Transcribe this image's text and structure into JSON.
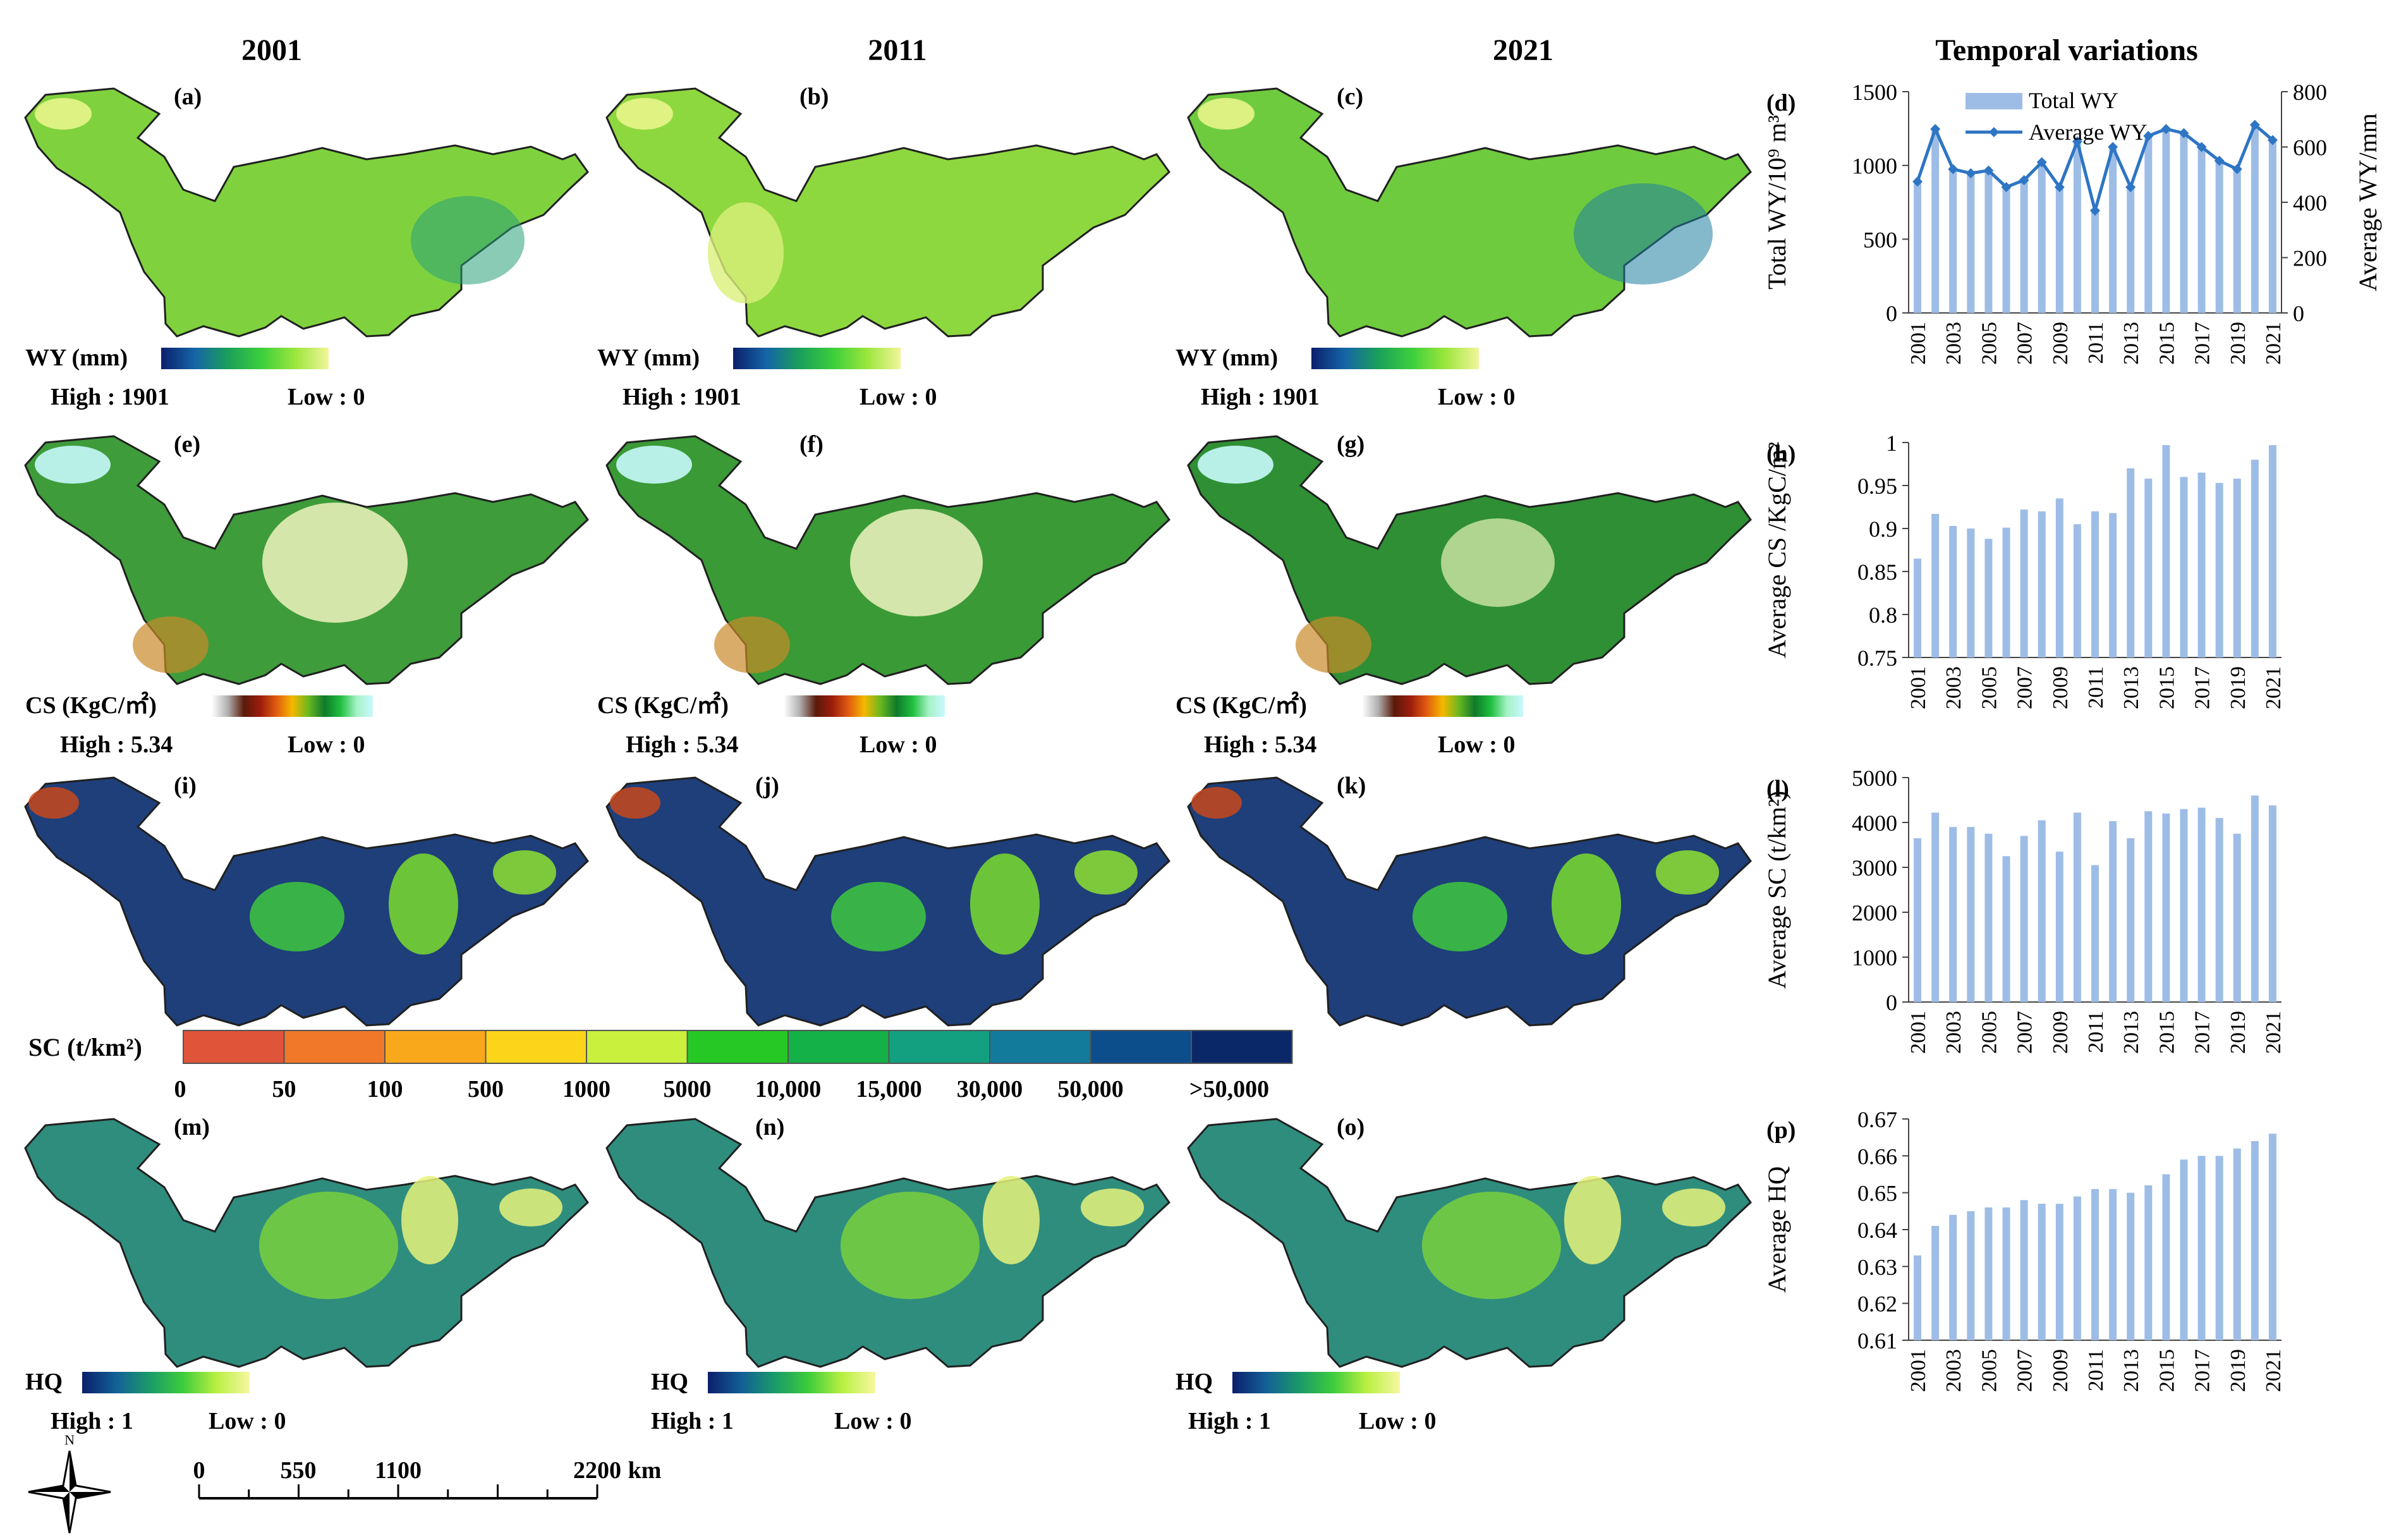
{
  "headers": {
    "years": [
      "2001",
      "2011",
      "2021"
    ],
    "temporal": "Temporal variations"
  },
  "panels": {
    "map_labels": [
      [
        "(a)",
        "(b)",
        "(c)"
      ],
      [
        "(e)",
        "(f)",
        "(g)"
      ],
      [
        "(i)",
        "(j)",
        "(k)"
      ],
      [
        "(m)",
        "(n)",
        "(o)"
      ]
    ],
    "chart_labels": [
      "(d)",
      "(h)",
      "(l)",
      "(p)"
    ]
  },
  "legends": {
    "wy": {
      "title": "WY (mm)",
      "high": "High : 1901",
      "low": "Low : 0",
      "colors": [
        "#0b1f6b",
        "#1565a8",
        "#1aa05a",
        "#3ccf3c",
        "#9be63c",
        "#f2f59a"
      ]
    },
    "cs": {
      "title": "CS (KgC/㎡)",
      "high": "High : 5.34",
      "low": "Low : 0",
      "colors": [
        "#ffffff",
        "#b0b0b0",
        "#5a1a0a",
        "#9b1c0c",
        "#e05a10",
        "#f5b800",
        "#6ab820",
        "#0f7a2a",
        "#1fbf3f",
        "#a6f2c6",
        "#c8f8ff"
      ]
    },
    "sc": {
      "title": "SC (t/km²)",
      "ticks": [
        "0",
        "50",
        "100",
        "500",
        "1000",
        "5000",
        "10,000",
        "15,000",
        "30,000",
        "50,000",
        ">50,000"
      ],
      "colors": [
        "#e0543a",
        "#f07828",
        "#f9a81c",
        "#fcd41a",
        "#c8f03c",
        "#26c826",
        "#14b048",
        "#12a080",
        "#127a9a",
        "#0c4e8c",
        "#0a2868"
      ]
    },
    "hq": {
      "title": "HQ",
      "high": "High : 1",
      "low": "Low : 0",
      "colors": [
        "#0b1f6b",
        "#135f96",
        "#1a9a6a",
        "#3ccc3c",
        "#b8f040",
        "#f7f7a0"
      ]
    }
  },
  "scalebar": {
    "ticks": [
      "0",
      "550",
      "1100",
      "2200"
    ],
    "unit": "km"
  },
  "compass": {
    "north": "N"
  },
  "map_fills": {
    "wy": [
      "#7fd23d",
      "#8ed83f",
      "#6fcb3e"
    ],
    "cs": "#3e9c3a",
    "sc": "#1e3f7a",
    "hq": "#2f8d7e"
  },
  "chart_data": [
    {
      "type": "bar+line",
      "label": "(d)",
      "categories": [
        "2001",
        "2002",
        "2003",
        "2004",
        "2005",
        "2006",
        "2007",
        "2008",
        "2009",
        "2010",
        "2011",
        "2012",
        "2013",
        "2014",
        "2015",
        "2016",
        "2017",
        "2018",
        "2019",
        "2020",
        "2021"
      ],
      "tick_labels": [
        "2001",
        "2003",
        "2005",
        "2007",
        "2009",
        "2011",
        "2013",
        "2015",
        "2017",
        "2019",
        "2021"
      ],
      "ylabel": "Total WY/10⁹ m³",
      "y2label": "Average WY/mm",
      "ylim": [
        0,
        1500
      ],
      "yticks": [
        "0",
        "500",
        "1000",
        "1500"
      ],
      "y2lim": [
        0,
        800
      ],
      "y2ticks": [
        "0",
        "200",
        "400",
        "600",
        "800"
      ],
      "legend": [
        "Total WY",
        "Average WY"
      ],
      "series": [
        {
          "name": "Total WY",
          "kind": "bar",
          "axis": "left",
          "values": [
            880,
            1240,
            980,
            950,
            960,
            860,
            900,
            1010,
            860,
            1160,
            700,
            1130,
            860,
            1200,
            1250,
            1220,
            1130,
            1040,
            980,
            1280,
            1160
          ]
        },
        {
          "name": "Average WY",
          "kind": "line",
          "axis": "right",
          "values": [
            475,
            665,
            520,
            505,
            515,
            455,
            480,
            545,
            455,
            620,
            370,
            600,
            455,
            640,
            665,
            650,
            600,
            550,
            520,
            680,
            625
          ]
        }
      ],
      "bar_color": "#9dbde6",
      "line_color": "#2e75c4"
    },
    {
      "type": "bar",
      "label": "(h)",
      "categories": [
        "2001",
        "2002",
        "2003",
        "2004",
        "2005",
        "2006",
        "2007",
        "2008",
        "2009",
        "2010",
        "2011",
        "2012",
        "2013",
        "2014",
        "2015",
        "2016",
        "2017",
        "2018",
        "2019",
        "2020",
        "2021"
      ],
      "tick_labels": [
        "2001",
        "2003",
        "2005",
        "2007",
        "2009",
        "2011",
        "2013",
        "2015",
        "2017",
        "2019",
        "2021"
      ],
      "ylabel": "Average CS /KgC/m²",
      "ylim": [
        0.75,
        1.0
      ],
      "yticks": [
        "0.75",
        "0.8",
        "0.85",
        "0.9",
        "0.95",
        "1"
      ],
      "series": [
        {
          "name": "Average CS",
          "values": [
            0.865,
            0.917,
            0.903,
            0.9,
            0.888,
            0.901,
            0.922,
            0.92,
            0.935,
            0.905,
            0.92,
            0.918,
            0.97,
            0.958,
            0.997,
            0.96,
            0.965,
            0.953,
            0.958,
            0.98,
            0.997
          ]
        }
      ],
      "bar_color": "#9dbde6"
    },
    {
      "type": "bar",
      "label": "(l)",
      "categories": [
        "2001",
        "2002",
        "2003",
        "2004",
        "2005",
        "2006",
        "2007",
        "2008",
        "2009",
        "2010",
        "2011",
        "2012",
        "2013",
        "2014",
        "2015",
        "2016",
        "2017",
        "2018",
        "2019",
        "2020",
        "2021"
      ],
      "tick_labels": [
        "2001",
        "2003",
        "2005",
        "2007",
        "2009",
        "2011",
        "2013",
        "2015",
        "2017",
        "2019",
        "2021"
      ],
      "ylabel": "Average SC (t/km²)",
      "ylim": [
        0,
        5000
      ],
      "yticks": [
        "0",
        "1000",
        "2000",
        "3000",
        "4000",
        "5000"
      ],
      "series": [
        {
          "name": "Average SC",
          "values": [
            3650,
            4220,
            3900,
            3900,
            3750,
            3250,
            3700,
            4050,
            3350,
            4220,
            3050,
            4030,
            3650,
            4250,
            4200,
            4300,
            4330,
            4100,
            3750,
            4600,
            4380
          ]
        }
      ],
      "bar_color": "#9dbde6"
    },
    {
      "type": "bar",
      "label": "(p)",
      "categories": [
        "2001",
        "2002",
        "2003",
        "2004",
        "2005",
        "2006",
        "2007",
        "2008",
        "2009",
        "2010",
        "2011",
        "2012",
        "2013",
        "2014",
        "2015",
        "2016",
        "2017",
        "2018",
        "2019",
        "2020",
        "2021"
      ],
      "tick_labels": [
        "2001",
        "2003",
        "2005",
        "2007",
        "2009",
        "2011",
        "2013",
        "2015",
        "2017",
        "2019",
        "2021"
      ],
      "ylabel": "Average HQ",
      "ylim": [
        0.61,
        0.67
      ],
      "yticks": [
        "0.61",
        "0.62",
        "0.63",
        "0.64",
        "0.65",
        "0.66",
        "0.67"
      ],
      "series": [
        {
          "name": "Average HQ",
          "values": [
            0.633,
            0.641,
            0.644,
            0.645,
            0.646,
            0.646,
            0.648,
            0.647,
            0.647,
            0.649,
            0.651,
            0.651,
            0.65,
            0.652,
            0.655,
            0.659,
            0.66,
            0.66,
            0.662,
            0.664,
            0.666
          ]
        }
      ],
      "bar_color": "#9dbde6"
    }
  ]
}
